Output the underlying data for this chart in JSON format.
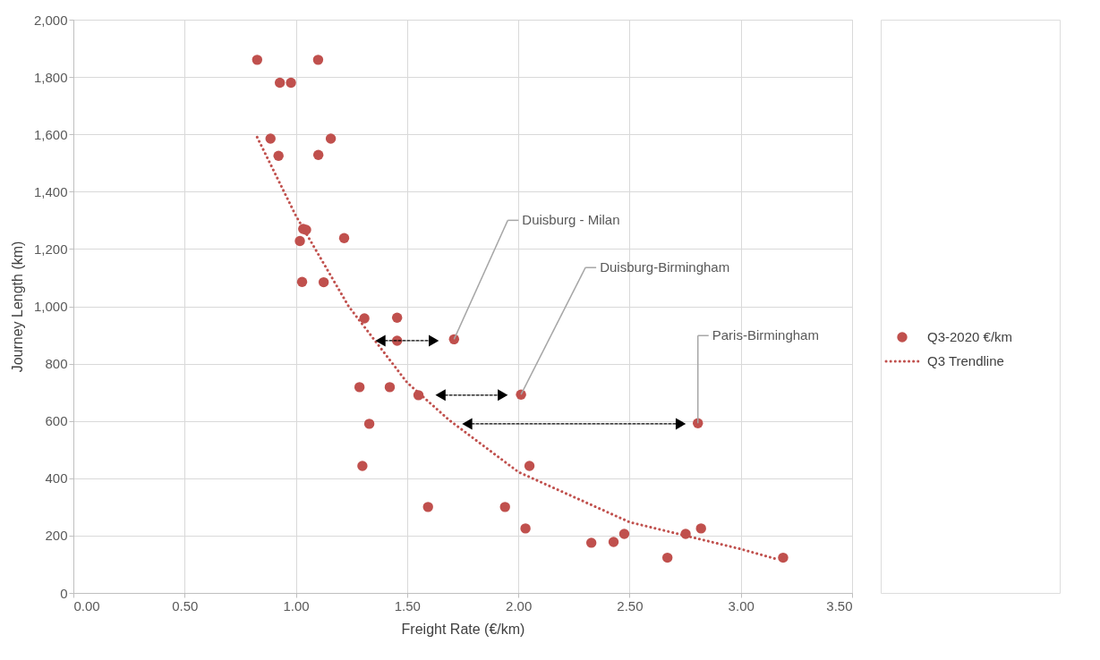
{
  "chart_data": {
    "type": "scatter",
    "xlabel": "Freight Rate (€/km)",
    "ylabel": "Journey Length (km)",
    "xlim": [
      0,
      3.5
    ],
    "ylim": [
      0,
      2000
    ],
    "xticks": [
      {
        "value": 0,
        "label": "0.00"
      },
      {
        "value": 0.5,
        "label": "0.50"
      },
      {
        "value": 1,
        "label": "1.00"
      },
      {
        "value": 1.5,
        "label": "1.50"
      },
      {
        "value": 2,
        "label": "2.00"
      },
      {
        "value": 2.5,
        "label": "2.50"
      },
      {
        "value": 3,
        "label": "3.00"
      },
      {
        "value": 3.5,
        "label": "3.50"
      }
    ],
    "yticks": [
      0,
      200,
      400,
      600,
      800,
      {
        "value": 1000,
        "label": "1,000"
      },
      {
        "value": 1200,
        "label": "1,200"
      },
      {
        "value": 1400,
        "label": "1,400"
      },
      {
        "value": 1600,
        "label": "1,600"
      },
      {
        "value": 1800,
        "label": "1,800"
      },
      {
        "value": 2000,
        "label": "2,000"
      }
    ],
    "grid": true,
    "legend": "right",
    "series": [
      {
        "name": "Q3-2020 €/km",
        "marker": "circle",
        "color": "#c0504d",
        "x": [
          0.826,
          1.1,
          0.928,
          0.978,
          0.886,
          1.157,
          0.922,
          1.101,
          1.033,
          1.046,
          1.018,
          1.217,
          1.028,
          1.125,
          1.308,
          1.455,
          1.455,
          1.711,
          1.286,
          1.422,
          1.551,
          1.33,
          1.299,
          1.594,
          2.012,
          2.807,
          2.05,
          1.94,
          2.032,
          2.328,
          2.428,
          2.476,
          2.67,
          2.752,
          2.821,
          3.19
        ],
        "values": [
          1860,
          1860,
          1780,
          1780,
          1585,
          1585,
          1525,
          1528,
          1270,
          1267,
          1228,
          1238,
          1085,
          1084,
          958,
          960,
          880,
          885,
          718,
          718,
          690,
          590,
          443,
          300,
          692,
          592,
          443,
          300,
          225,
          175,
          178,
          206,
          123,
          206,
          225,
          123
        ]
      },
      {
        "name": "Q3 Trendline",
        "type": "line",
        "line_style": "dotted",
        "marker": "none",
        "color": "#c0504d",
        "x": [
          0.826,
          1.0,
          1.237,
          1.5,
          1.689,
          2.0,
          2.5,
          3.0,
          3.165
        ],
        "values": [
          1590,
          1316,
          1000,
          734,
          603,
          422,
          247,
          153,
          117
        ]
      },
      {
        "type": "line",
        "line_style": "dashed",
        "marker": "triangle",
        "color": "#000000",
        "x": [
          1.38,
          1.62
        ],
        "values": [
          880,
          880
        ]
      },
      {
        "type": "line",
        "line_style": "dashed",
        "marker": "triangle",
        "color": "#000000",
        "x": [
          1.65,
          1.93
        ],
        "values": [
          690,
          690
        ]
      },
      {
        "type": "line",
        "line_style": "dashed",
        "marker": "triangle",
        "color": "#000000",
        "x": [
          1.77,
          2.73
        ],
        "values": [
          590,
          590
        ]
      }
    ],
    "annotations": [
      {
        "text": "Duisburg - Milan",
        "x": 1.711,
        "y": 885
      },
      {
        "text": "Duisburg-Birmingham",
        "x": 2.012,
        "y": 692
      },
      {
        "text": "Paris-Birmingham",
        "x": 2.807,
        "y": 592
      }
    ]
  }
}
